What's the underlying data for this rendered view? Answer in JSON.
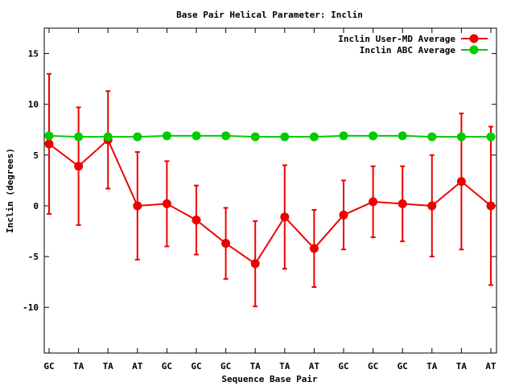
{
  "chart_data": {
    "type": "line",
    "title": "Base Pair Helical Parameter: Inclin",
    "xlabel": "Sequence Base Pair",
    "ylabel": "Inclin (degrees)",
    "categories": [
      "GC",
      "TA",
      "TA",
      "AT",
      "GC",
      "GC",
      "GC",
      "TA",
      "TA",
      "AT",
      "GC",
      "GC",
      "GC",
      "TA",
      "TA",
      "AT"
    ],
    "ylim": [
      -14.5,
      17.5
    ],
    "yticks": [
      -10,
      -5,
      0,
      5,
      10,
      15
    ],
    "grid": false,
    "legend_position": "top-right",
    "series": [
      {
        "name": "Inclin User-MD Average",
        "color": "#ee0000",
        "values": [
          6.1,
          3.9,
          6.5,
          0.0,
          0.2,
          -1.4,
          -3.7,
          -5.7,
          -1.1,
          -4.2,
          -0.9,
          0.4,
          0.2,
          0.0,
          2.4,
          0.0
        ],
        "error": [
          6.9,
          5.8,
          4.8,
          5.3,
          4.2,
          3.4,
          3.5,
          4.2,
          5.1,
          3.8,
          3.4,
          3.5,
          3.7,
          5.0,
          6.7,
          7.8
        ]
      },
      {
        "name": "Inclin ABC Average",
        "color": "#00cc00",
        "values": [
          6.9,
          6.8,
          6.8,
          6.8,
          6.9,
          6.9,
          6.9,
          6.8,
          6.8,
          6.8,
          6.9,
          6.9,
          6.9,
          6.8,
          6.8,
          6.8
        ]
      }
    ]
  }
}
